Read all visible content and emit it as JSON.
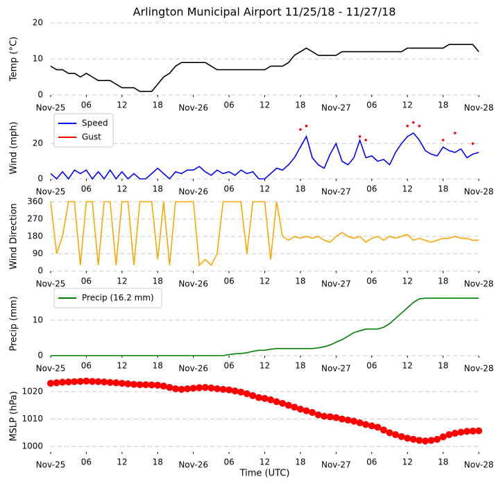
{
  "chart_data": [
    {
      "type": "line",
      "title": "Arlington Municipal Airport 11/25/18 - 11/27/18",
      "ylabel": "Temp (°C)",
      "color": "#000000",
      "x": [
        0,
        1,
        2,
        3,
        4,
        5,
        6,
        7,
        8,
        9,
        10,
        11,
        12,
        13,
        14,
        15,
        16,
        17,
        18,
        19,
        20,
        21,
        22,
        23,
        24,
        25,
        26,
        27,
        28,
        29,
        30,
        31,
        32,
        33,
        34,
        35,
        36,
        37,
        38,
        39,
        40,
        41,
        42,
        43,
        44,
        45,
        46,
        47,
        48,
        49,
        50,
        51,
        52,
        53,
        54,
        55,
        56,
        57,
        58,
        59,
        60,
        61,
        62,
        63,
        64,
        65,
        66,
        67,
        68,
        69,
        70,
        71,
        72
      ],
      "values": [
        8,
        7,
        7,
        6,
        6,
        5,
        6,
        5,
        4,
        4,
        4,
        3,
        2,
        2,
        2,
        1,
        1,
        1,
        3,
        5,
        6,
        8,
        9,
        9,
        9,
        9,
        9,
        8,
        7,
        7,
        7,
        7,
        7,
        7,
        7,
        7,
        7,
        8,
        8,
        8,
        9,
        11,
        12,
        13,
        12,
        11,
        11,
        11,
        11,
        12,
        12,
        12,
        12,
        12,
        12,
        12,
        12,
        12,
        12,
        12,
        13,
        13,
        13,
        13,
        13,
        13,
        13,
        14,
        14,
        14,
        14,
        14,
        12
      ],
      "xlim": [
        0,
        72
      ],
      "ylim": [
        0,
        20
      ],
      "yticks": [
        0,
        10,
        20
      ],
      "xticks": [
        {
          "value": 0,
          "label": "Nov-25"
        },
        {
          "value": 6,
          "label": "06"
        },
        {
          "value": 12,
          "label": "12"
        },
        {
          "value": 18,
          "label": "18"
        },
        {
          "value": 24,
          "label": "Nov-26"
        },
        {
          "value": 30,
          "label": "06"
        },
        {
          "value": 36,
          "label": "12"
        },
        {
          "value": 42,
          "label": "18"
        },
        {
          "value": 48,
          "label": "Nov-27"
        },
        {
          "value": 54,
          "label": "06"
        },
        {
          "value": 60,
          "label": "12"
        },
        {
          "value": 66,
          "label": "18"
        },
        {
          "value": 72,
          "label": "Nov-28"
        }
      ],
      "grid": true
    },
    {
      "type": "line",
      "ylabel": "Wind (mph)",
      "legend": "upper left",
      "x": [
        0,
        1,
        2,
        3,
        4,
        5,
        6,
        7,
        8,
        9,
        10,
        11,
        12,
        13,
        14,
        15,
        16,
        17,
        18,
        19,
        20,
        21,
        22,
        23,
        24,
        25,
        26,
        27,
        28,
        29,
        30,
        31,
        32,
        33,
        34,
        35,
        36,
        37,
        38,
        39,
        40,
        41,
        42,
        43,
        44,
        45,
        46,
        47,
        48,
        49,
        50,
        51,
        52,
        53,
        54,
        55,
        56,
        57,
        58,
        59,
        60,
        61,
        62,
        63,
        64,
        65,
        66,
        67,
        68,
        69,
        70,
        71,
        72
      ],
      "series": [
        {
          "name": "Speed",
          "color": "#0000ff",
          "values": [
            3,
            0,
            4,
            0,
            5,
            3,
            5,
            0,
            4,
            0,
            5,
            0,
            4,
            0,
            3,
            0,
            0,
            3,
            6,
            3,
            0,
            4,
            3,
            5,
            5,
            7,
            4,
            2,
            5,
            3,
            4,
            2,
            5,
            3,
            4,
            0,
            0,
            3,
            6,
            5,
            8,
            12,
            18,
            24,
            12,
            8,
            6,
            14,
            20,
            10,
            8,
            12,
            22,
            12,
            13,
            10,
            11,
            8,
            15,
            20,
            24,
            26,
            22,
            16,
            14,
            13,
            18,
            16,
            15,
            17,
            12,
            14,
            15
          ]
        },
        {
          "name": "Gust",
          "color": "#ff0000",
          "marker": ".",
          "values": [
            null,
            null,
            null,
            null,
            null,
            null,
            null,
            null,
            null,
            null,
            null,
            null,
            null,
            null,
            null,
            null,
            null,
            null,
            null,
            null,
            null,
            null,
            null,
            null,
            null,
            null,
            null,
            null,
            null,
            null,
            null,
            null,
            null,
            null,
            null,
            null,
            null,
            null,
            null,
            null,
            null,
            null,
            28,
            30,
            null,
            null,
            null,
            null,
            null,
            null,
            null,
            null,
            24,
            22,
            null,
            null,
            null,
            null,
            null,
            null,
            30,
            32,
            30,
            null,
            null,
            null,
            22,
            null,
            26,
            null,
            null,
            20,
            null
          ]
        }
      ],
      "xlim": [
        0,
        72
      ],
      "ylim": [
        0,
        35
      ],
      "yticks": [
        0,
        20
      ],
      "xticks": [
        {
          "value": 0,
          "label": "Nov-25"
        },
        {
          "value": 6,
          "label": "06"
        },
        {
          "value": 12,
          "label": "12"
        },
        {
          "value": 18,
          "label": "18"
        },
        {
          "value": 24,
          "label": "Nov-26"
        },
        {
          "value": 30,
          "label": "06"
        },
        {
          "value": 36,
          "label": "12"
        },
        {
          "value": 42,
          "label": "18"
        },
        {
          "value": 48,
          "label": "Nov-27"
        },
        {
          "value": 54,
          "label": "06"
        },
        {
          "value": 60,
          "label": "12"
        },
        {
          "value": 66,
          "label": "18"
        },
        {
          "value": 72,
          "label": "Nov-28"
        }
      ],
      "grid": true
    },
    {
      "type": "line",
      "ylabel": "Wind Direction",
      "color": "#ffa500",
      "x": [
        0,
        1,
        2,
        3,
        4,
        5,
        6,
        7,
        8,
        9,
        10,
        11,
        12,
        13,
        14,
        15,
        16,
        17,
        18,
        19,
        20,
        21,
        22,
        23,
        24,
        25,
        26,
        27,
        28,
        29,
        30,
        31,
        32,
        33,
        34,
        35,
        36,
        37,
        38,
        39,
        40,
        41,
        42,
        43,
        44,
        45,
        46,
        47,
        48,
        49,
        50,
        51,
        52,
        53,
        54,
        55,
        56,
        57,
        58,
        59,
        60,
        61,
        62,
        63,
        64,
        65,
        66,
        67,
        68,
        69,
        70,
        71,
        72
      ],
      "values": [
        360,
        90,
        180,
        360,
        360,
        30,
        360,
        360,
        30,
        360,
        360,
        30,
        360,
        360,
        30,
        360,
        360,
        360,
        60,
        360,
        30,
        360,
        360,
        360,
        360,
        30,
        60,
        30,
        90,
        360,
        360,
        360,
        360,
        90,
        360,
        360,
        360,
        60,
        360,
        180,
        160,
        180,
        170,
        180,
        170,
        180,
        160,
        150,
        180,
        200,
        180,
        170,
        180,
        150,
        170,
        180,
        160,
        180,
        170,
        180,
        190,
        160,
        170,
        160,
        150,
        160,
        170,
        170,
        180,
        170,
        170,
        160,
        160
      ],
      "xlim": [
        0,
        72
      ],
      "ylim": [
        0,
        360
      ],
      "yticks": [
        0,
        90,
        180,
        270,
        360
      ],
      "xticks": [
        {
          "value": 0,
          "label": "Nov-25"
        },
        {
          "value": 6,
          "label": "06"
        },
        {
          "value": 12,
          "label": "12"
        },
        {
          "value": 18,
          "label": "18"
        },
        {
          "value": 24,
          "label": "Nov-26"
        },
        {
          "value": 30,
          "label": "06"
        },
        {
          "value": 36,
          "label": "12"
        },
        {
          "value": 42,
          "label": "18"
        },
        {
          "value": 48,
          "label": "Nov-27"
        },
        {
          "value": 54,
          "label": "06"
        },
        {
          "value": 60,
          "label": "12"
        },
        {
          "value": 66,
          "label": "18"
        },
        {
          "value": 72,
          "label": "Nov-28"
        }
      ],
      "grid": true
    },
    {
      "type": "line",
      "ylabel": "Precip (mm)",
      "legend": "upper left",
      "x": [
        0,
        1,
        2,
        3,
        4,
        5,
        6,
        7,
        8,
        9,
        10,
        11,
        12,
        13,
        14,
        15,
        16,
        17,
        18,
        19,
        20,
        21,
        22,
        23,
        24,
        25,
        26,
        27,
        28,
        29,
        30,
        31,
        32,
        33,
        34,
        35,
        36,
        37,
        38,
        39,
        40,
        41,
        42,
        43,
        44,
        45,
        46,
        47,
        48,
        49,
        50,
        51,
        52,
        53,
        54,
        55,
        56,
        57,
        58,
        59,
        60,
        61,
        62,
        63,
        64,
        65,
        66,
        67,
        68,
        69,
        70,
        71,
        72
      ],
      "series": [
        {
          "name": "Precip (16.2 mm)",
          "color": "#008000",
          "values": [
            0,
            0,
            0,
            0,
            0,
            0,
            0,
            0,
            0,
            0,
            0,
            0,
            0,
            0,
            0,
            0,
            0,
            0,
            0,
            0,
            0,
            0,
            0,
            0,
            0,
            0,
            0,
            0,
            0,
            0,
            0.3,
            0.5,
            0.6,
            0.8,
            1.2,
            1.5,
            1.5,
            1.8,
            2,
            2,
            2,
            2,
            2,
            2,
            2,
            2.2,
            2.5,
            3,
            3.8,
            4.5,
            5.5,
            6.5,
            7,
            7.5,
            7.5,
            7.5,
            8,
            9,
            10.5,
            12,
            13.5,
            15,
            16,
            16.2,
            16.2,
            16.2,
            16.2,
            16.2,
            16.2,
            16.2,
            16.2,
            16.2,
            16.2
          ]
        }
      ],
      "xlim": [
        0,
        72
      ],
      "ylim": [
        0,
        18
      ],
      "yticks": [
        0,
        10
      ],
      "xticks": [
        {
          "value": 0,
          "label": "Nov-25"
        },
        {
          "value": 6,
          "label": "06"
        },
        {
          "value": 12,
          "label": "12"
        },
        {
          "value": 18,
          "label": "18"
        },
        {
          "value": 24,
          "label": "Nov-26"
        },
        {
          "value": 30,
          "label": "06"
        },
        {
          "value": 36,
          "label": "12"
        },
        {
          "value": 42,
          "label": "18"
        },
        {
          "value": 48,
          "label": "Nov-27"
        },
        {
          "value": 54,
          "label": "06"
        },
        {
          "value": 60,
          "label": "12"
        },
        {
          "value": 66,
          "label": "18"
        },
        {
          "value": 72,
          "label": "Nov-28"
        }
      ],
      "grid": true
    },
    {
      "type": "line",
      "ylabel": "MSLP (hPa)",
      "xlabel": "Time (UTC)",
      "color": "#ff0000",
      "marker": "o",
      "x": [
        0,
        1,
        2,
        3,
        4,
        5,
        6,
        7,
        8,
        9,
        10,
        11,
        12,
        13,
        14,
        15,
        16,
        17,
        18,
        19,
        20,
        21,
        22,
        23,
        24,
        25,
        26,
        27,
        28,
        29,
        30,
        31,
        32,
        33,
        34,
        35,
        36,
        37,
        38,
        39,
        40,
        41,
        42,
        43,
        44,
        45,
        46,
        47,
        48,
        49,
        50,
        51,
        52,
        53,
        54,
        55,
        56,
        57,
        58,
        59,
        60,
        61,
        62,
        63,
        64,
        65,
        66,
        67,
        68,
        69,
        70,
        71,
        72
      ],
      "values": [
        1023,
        1023.2,
        1023.4,
        1023.5,
        1023.6,
        1023.7,
        1023.8,
        1023.7,
        1023.6,
        1023.5,
        1023.3,
        1023.2,
        1023,
        1022.8,
        1022.6,
        1022.5,
        1022.5,
        1022.4,
        1022.3,
        1022,
        1021.5,
        1021,
        1020.8,
        1021,
        1021.2,
        1021.4,
        1021.5,
        1021.3,
        1021,
        1020.8,
        1020.6,
        1020.2,
        1019.8,
        1019.2,
        1018.5,
        1017.8,
        1017.5,
        1017,
        1016.3,
        1015.7,
        1015,
        1014.3,
        1013.6,
        1013,
        1012.4,
        1011.5,
        1011,
        1010.8,
        1010.5,
        1010,
        1009.6,
        1009.2,
        1008.6,
        1008,
        1007.5,
        1007,
        1006,
        1005,
        1004.3,
        1003.6,
        1003,
        1002.6,
        1002.2,
        1002,
        1002.2,
        1002.6,
        1003.5,
        1004.3,
        1004.8,
        1005.2,
        1005.5,
        1005.6,
        1005.7
      ],
      "xlim": [
        0,
        72
      ],
      "ylim": [
        998,
        1024
      ],
      "yticks": [
        1000,
        1010,
        1020
      ],
      "xticks": [
        {
          "value": 0,
          "label": "Nov-25"
        },
        {
          "value": 6,
          "label": "06"
        },
        {
          "value": 12,
          "label": "12"
        },
        {
          "value": 18,
          "label": "18"
        },
        {
          "value": 24,
          "label": "Nov-26"
        },
        {
          "value": 30,
          "label": "06"
        },
        {
          "value": 36,
          "label": "12"
        },
        {
          "value": 42,
          "label": "18"
        },
        {
          "value": 48,
          "label": "Nov-27"
        },
        {
          "value": 54,
          "label": "06"
        },
        {
          "value": 60,
          "label": "12"
        },
        {
          "value": 66,
          "label": "18"
        },
        {
          "value": 72,
          "label": "Nov-28"
        }
      ],
      "grid": true
    }
  ]
}
